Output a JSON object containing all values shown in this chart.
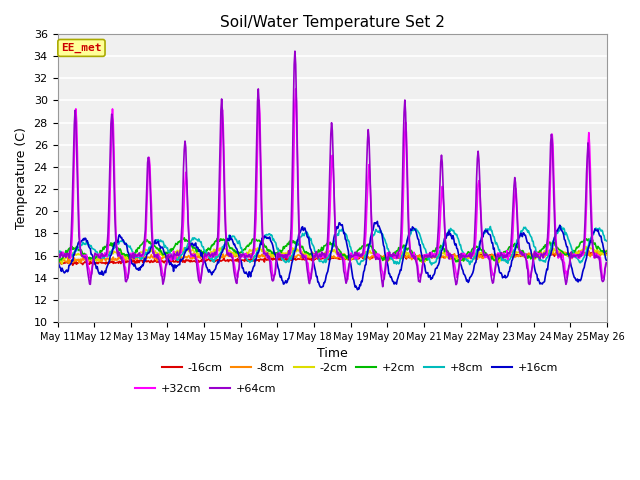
{
  "title": "Soil/Water Temperature Set 2",
  "xlabel": "Time",
  "ylabel": "Temperature (C)",
  "ylim": [
    10,
    36
  ],
  "yticks": [
    10,
    12,
    14,
    16,
    18,
    20,
    22,
    24,
    26,
    28,
    30,
    32,
    34,
    36
  ],
  "annotation_text": "EE_met",
  "annotation_color": "#cc0000",
  "annotation_box_color": "#ffff99",
  "annotation_box_edge": "#aaaa00",
  "series_colors": {
    "-16cm": "#dd0000",
    "-8cm": "#ff8800",
    "-2cm": "#dddd00",
    "+2cm": "#00bb00",
    "+8cm": "#00bbbb",
    "+16cm": "#0000cc",
    "+32cm": "#ff00ff",
    "+64cm": "#9900cc"
  },
  "x_start": 11,
  "x_end": 26,
  "x_tick_positions": [
    11,
    12,
    13,
    14,
    15,
    16,
    17,
    18,
    19,
    20,
    21,
    22,
    23,
    24,
    25,
    26
  ],
  "x_tick_labels": [
    "May 11",
    "May 12",
    "May 13",
    "May 14",
    "May 15",
    "May 16",
    "May 17",
    "May 18",
    "May 19",
    "May 20",
    "May 21",
    "May 22",
    "May 23",
    "May 24",
    "May 25",
    "May 26"
  ],
  "fig_bg_color": "#ffffff",
  "plot_bg_color": "#f0f0f0",
  "grid_color": "#dddddd",
  "legend_entries": [
    "-16cm",
    "-8cm",
    "-2cm",
    "+2cm",
    "+8cm",
    "+16cm",
    "+32cm",
    "+64cm"
  ]
}
